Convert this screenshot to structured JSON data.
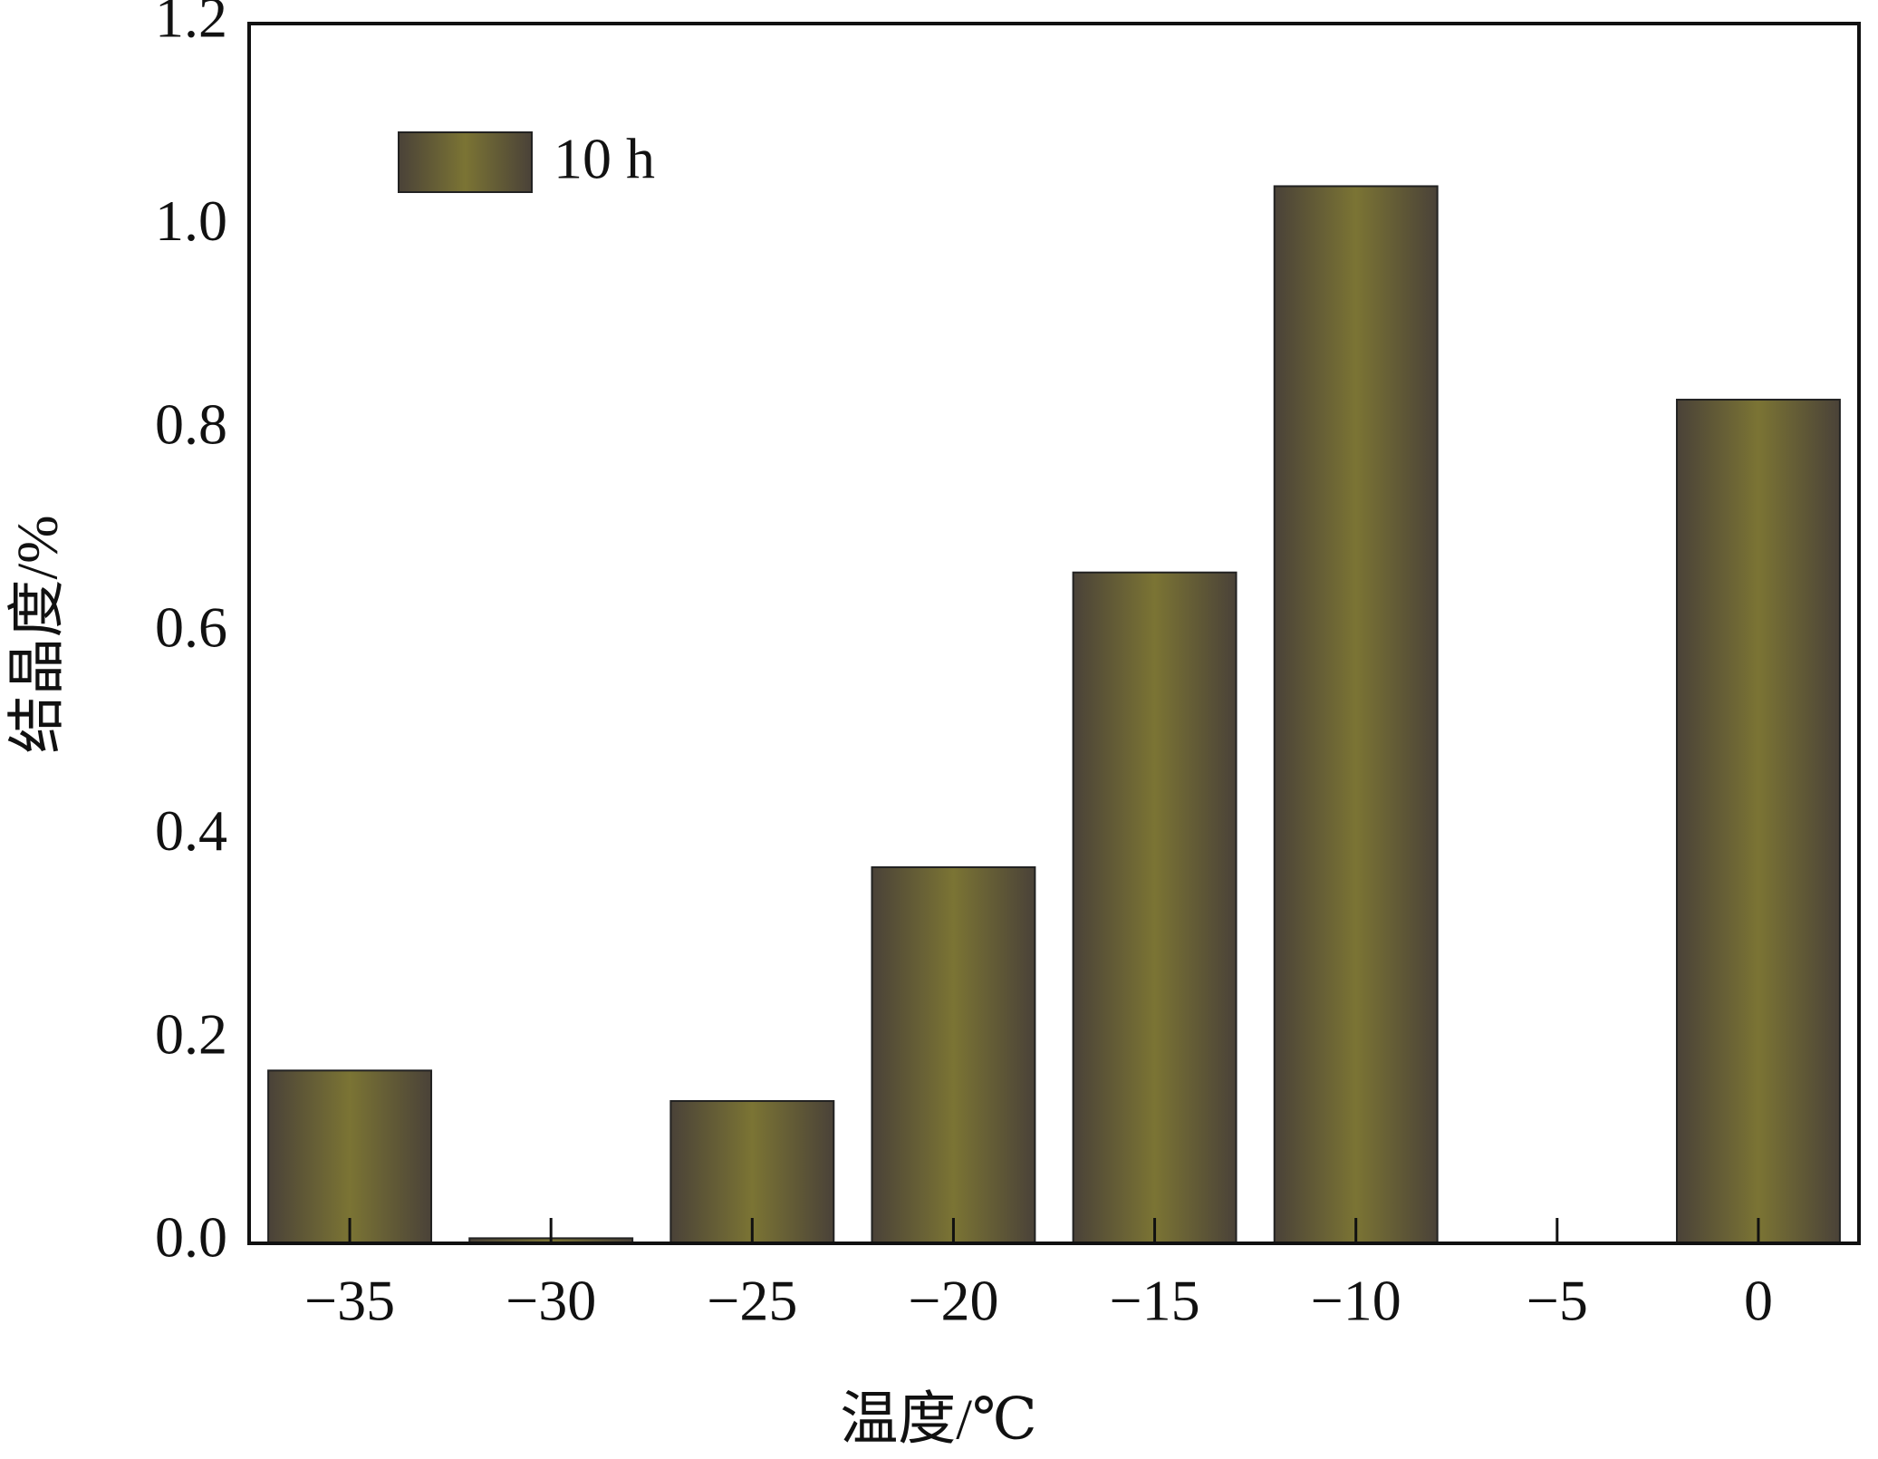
{
  "chart_data": {
    "type": "bar",
    "x_label": "温度/℃",
    "y_label": "结晶度/%",
    "categories": [
      "−35",
      "−30",
      "−25",
      "−20",
      "−15",
      "−10",
      "−5",
      "0"
    ],
    "series": [
      {
        "name": "10 h",
        "color": "#7b7434",
        "values": [
          0.17,
          0.005,
          0.14,
          0.37,
          0.66,
          1.04,
          0,
          0.83
        ]
      }
    ],
    "ylim": [
      0,
      1.2
    ],
    "yticks": [
      {
        "value": 0,
        "label": "0.0"
      },
      0.2,
      0.4,
      0.6,
      0.8,
      {
        "value": 1,
        "label": "1.0"
      },
      1.2
    ],
    "grid": false,
    "legend": "upper left"
  }
}
